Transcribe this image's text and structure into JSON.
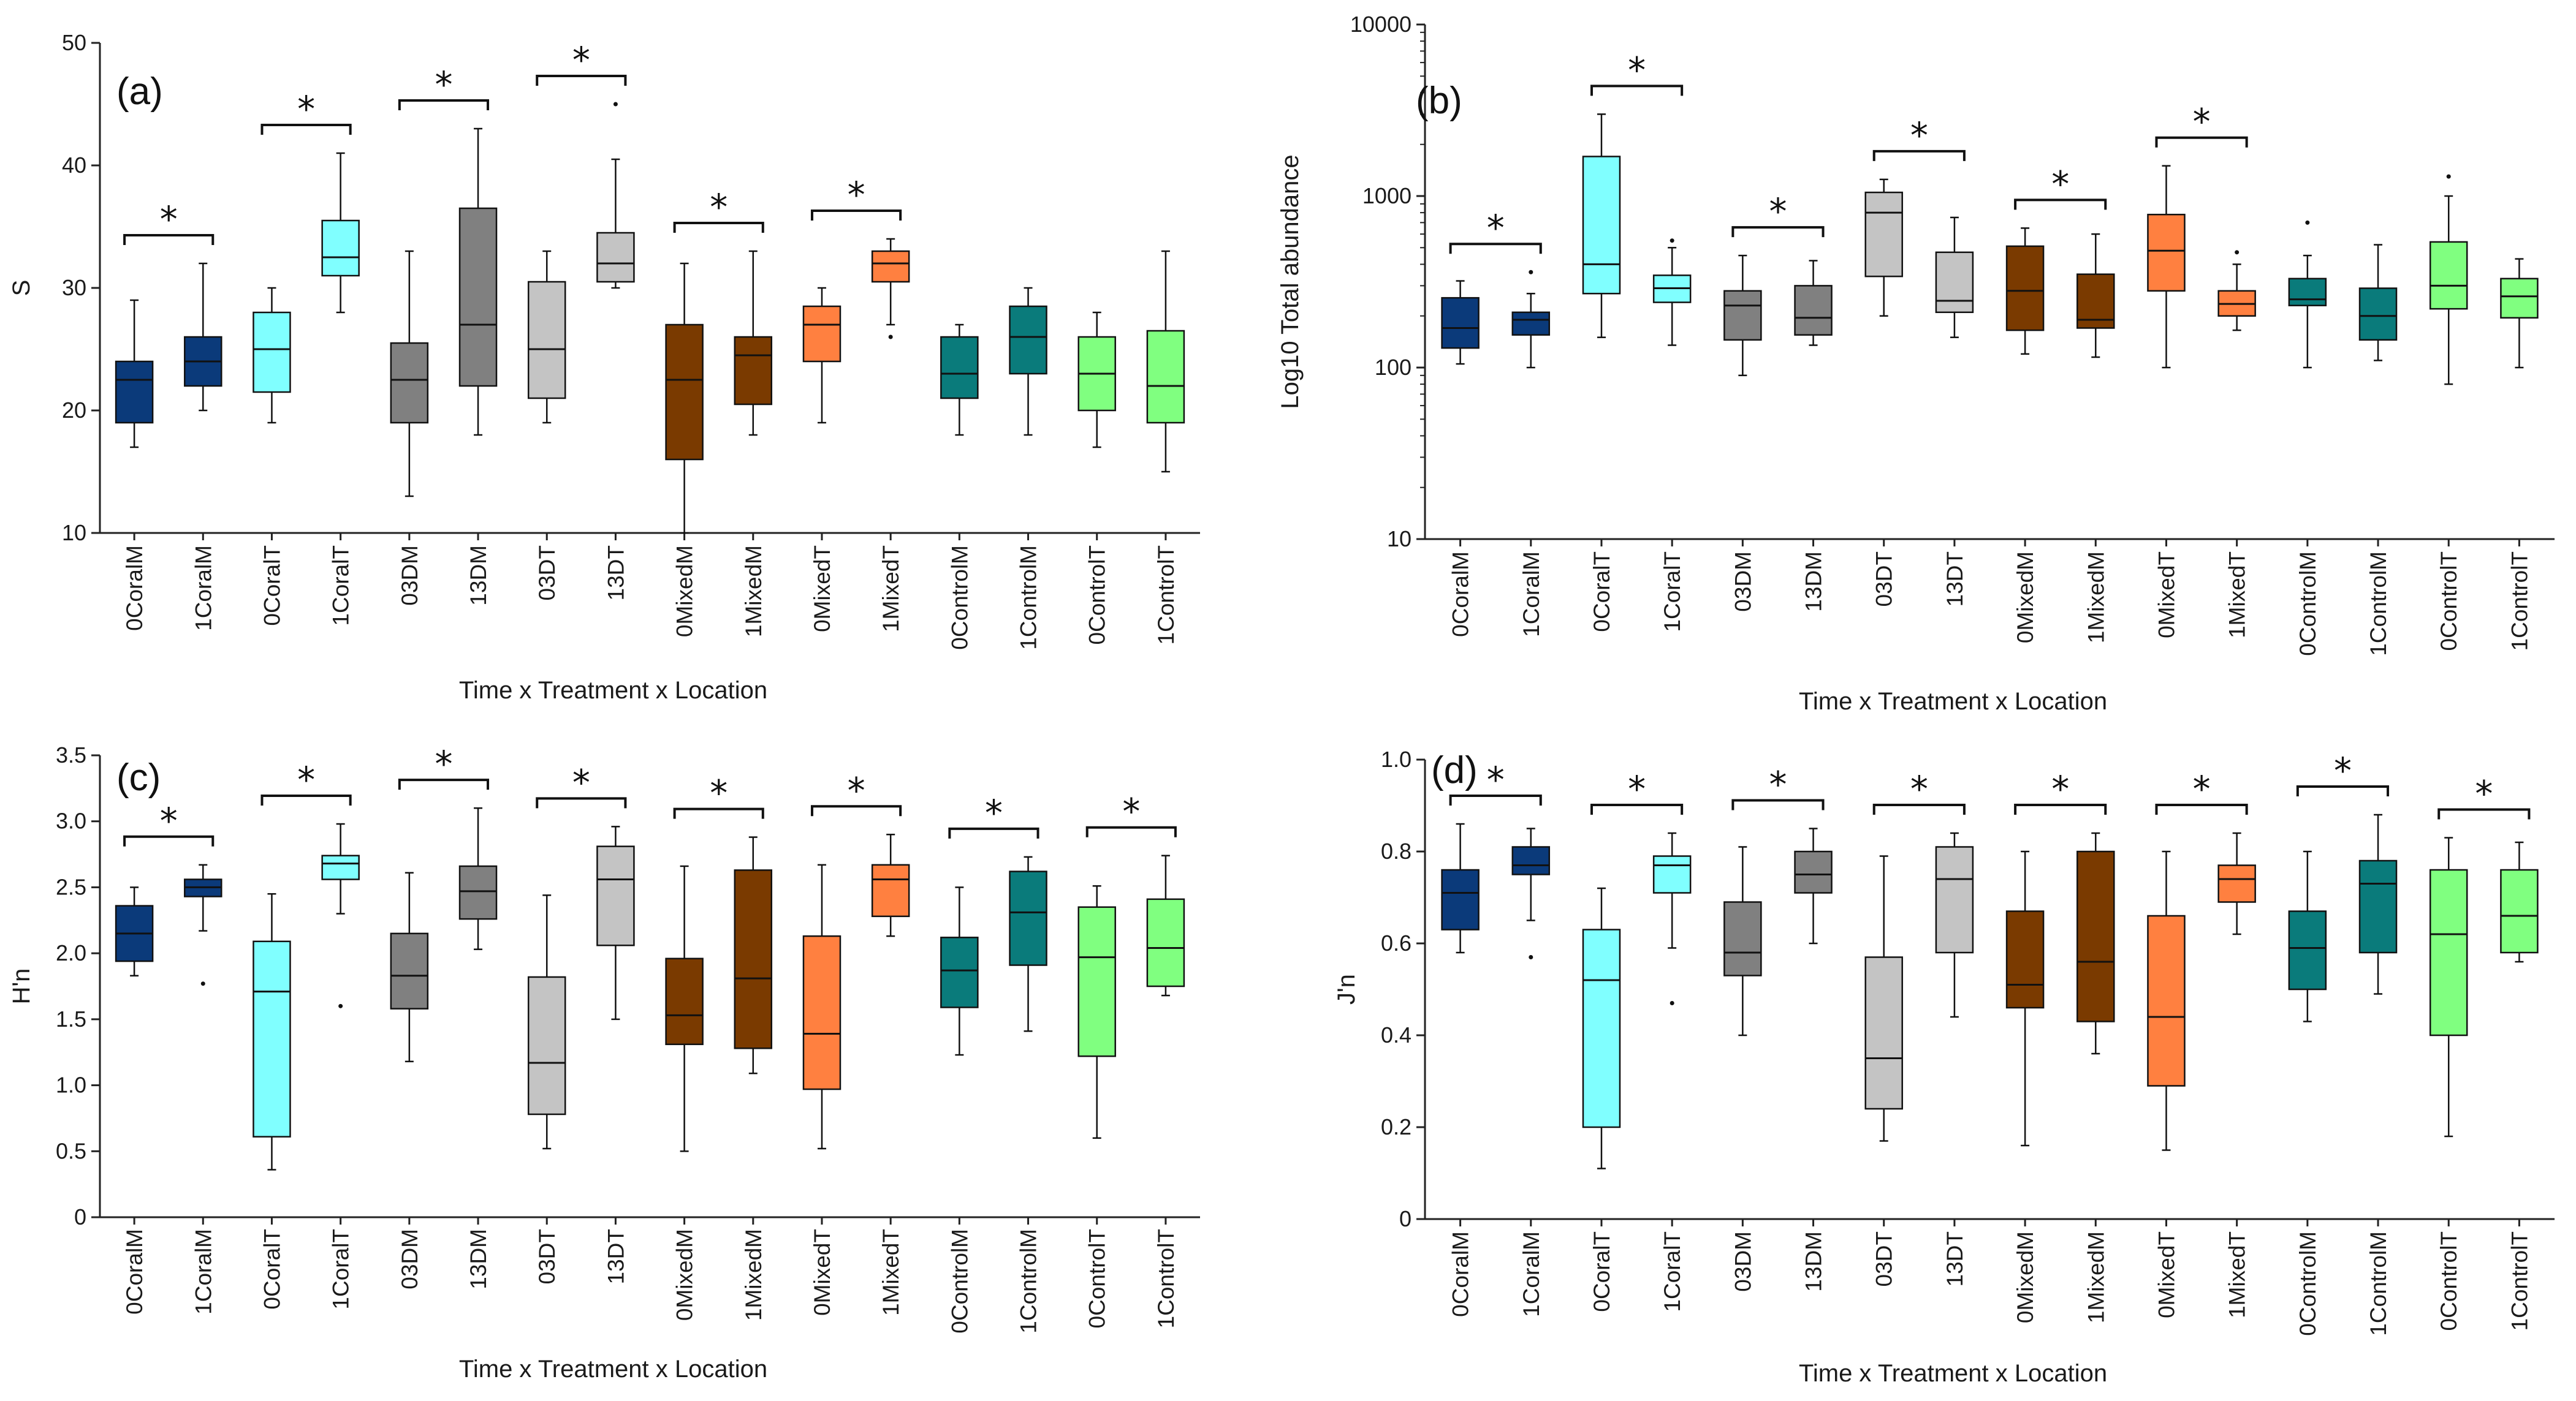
{
  "groups": [
    "0CoralM",
    "1CoralM",
    "0CoralT",
    "1CoralT",
    "03DM",
    "13DM",
    "03DT",
    "13DT",
    "0MixedM",
    "1MixedM",
    "0MixedT",
    "1MixedT",
    "0ControlM",
    "1ControlM",
    "0ControlT",
    "1ControlT"
  ],
  "colors": [
    "#0b3a7a",
    "#0b3a7a",
    "#80ffff",
    "#80ffff",
    "#808080",
    "#808080",
    "#c4c4c4",
    "#c4c4c4",
    "#7a3a00",
    "#7a3a00",
    "#ff8040",
    "#ff8040",
    "#0a7b7b",
    "#0a7b7b",
    "#80ff80",
    "#80ff80"
  ],
  "chart_data": [
    {
      "panel": "(a)",
      "type": "box",
      "ylabel": "S",
      "xlabel": "Time x Treatment x Location",
      "scale": "linear",
      "ylim": [
        10,
        50
      ],
      "yticks": [
        "10",
        "20",
        "30",
        "40",
        "50"
      ],
      "sig_pairs": [
        [
          0,
          1
        ],
        [
          2,
          3
        ],
        [
          4,
          5
        ],
        [
          6,
          7
        ],
        [
          8,
          9
        ],
        [
          10,
          11
        ]
      ],
      "boxes": [
        {
          "min": 17,
          "q1": 19,
          "median": 22.5,
          "q3": 24,
          "max": 29,
          "outliers": []
        },
        {
          "min": 20,
          "q1": 22,
          "median": 24,
          "q3": 26,
          "max": 32,
          "outliers": []
        },
        {
          "min": 19,
          "q1": 21.5,
          "median": 25,
          "q3": 28,
          "max": 30,
          "outliers": []
        },
        {
          "min": 28,
          "q1": 31,
          "median": 32.5,
          "q3": 35.5,
          "max": 41,
          "outliers": []
        },
        {
          "min": 13,
          "q1": 19,
          "median": 22.5,
          "q3": 25.5,
          "max": 33,
          "outliers": []
        },
        {
          "min": 18,
          "q1": 22,
          "median": 27,
          "q3": 36.5,
          "max": 43,
          "outliers": []
        },
        {
          "min": 19,
          "q1": 21,
          "median": 25,
          "q3": 30.5,
          "max": 33,
          "outliers": []
        },
        {
          "min": 30,
          "q1": 30.5,
          "median": 32,
          "q3": 34.5,
          "max": 40.5,
          "outliers": [
            45
          ]
        },
        {
          "min": 10,
          "q1": 16,
          "median": 22.5,
          "q3": 27,
          "max": 32,
          "outliers": []
        },
        {
          "min": 18,
          "q1": 20.5,
          "median": 24.5,
          "q3": 26,
          "max": 33,
          "outliers": []
        },
        {
          "min": 19,
          "q1": 24,
          "median": 27,
          "q3": 28.5,
          "max": 30,
          "outliers": []
        },
        {
          "min": 27,
          "q1": 30.5,
          "median": 32,
          "q3": 33,
          "max": 34,
          "outliers": [
            26
          ]
        },
        {
          "min": 18,
          "q1": 21,
          "median": 23,
          "q3": 26,
          "max": 27,
          "outliers": []
        },
        {
          "min": 18,
          "q1": 23,
          "median": 26,
          "q3": 28.5,
          "max": 30,
          "outliers": []
        },
        {
          "min": 17,
          "q1": 20,
          "median": 23,
          "q3": 26,
          "max": 28,
          "outliers": []
        },
        {
          "min": 15,
          "q1": 19,
          "median": 22,
          "q3": 26.5,
          "max": 33,
          "outliers": []
        }
      ]
    },
    {
      "panel": "(b)",
      "type": "box",
      "ylabel": "Log10 Total abundance",
      "xlabel": "Time x Treatment x Location",
      "scale": "log",
      "ylim": [
        10,
        10000
      ],
      "yticks": [
        "10",
        "100",
        "1000",
        "10000"
      ],
      "sig_pairs": [
        [
          0,
          1
        ],
        [
          2,
          3
        ],
        [
          4,
          5
        ],
        [
          6,
          7
        ],
        [
          8,
          9
        ],
        [
          10,
          11
        ]
      ],
      "boxes": [
        {
          "min": 105,
          "q1": 130,
          "median": 170,
          "q3": 255,
          "max": 320,
          "outliers": []
        },
        {
          "min": 100,
          "q1": 155,
          "median": 190,
          "q3": 210,
          "max": 270,
          "outliers": [
            360
          ]
        },
        {
          "min": 150,
          "q1": 270,
          "median": 400,
          "q3": 1700,
          "max": 3000,
          "outliers": []
        },
        {
          "min": 135,
          "q1": 240,
          "median": 290,
          "q3": 345,
          "max": 500,
          "outliers": [
            550
          ]
        },
        {
          "min": 90,
          "q1": 145,
          "median": 230,
          "q3": 280,
          "max": 450,
          "outliers": []
        },
        {
          "min": 135,
          "q1": 155,
          "median": 195,
          "q3": 300,
          "max": 420,
          "outliers": []
        },
        {
          "min": 200,
          "q1": 340,
          "median": 800,
          "q3": 1050,
          "max": 1250,
          "outliers": []
        },
        {
          "min": 150,
          "q1": 210,
          "median": 245,
          "q3": 470,
          "max": 750,
          "outliers": []
        },
        {
          "min": 120,
          "q1": 165,
          "median": 280,
          "q3": 510,
          "max": 650,
          "outliers": []
        },
        {
          "min": 115,
          "q1": 170,
          "median": 190,
          "q3": 350,
          "max": 600,
          "outliers": []
        },
        {
          "min": 100,
          "q1": 280,
          "median": 480,
          "q3": 780,
          "max": 1500,
          "outliers": []
        },
        {
          "min": 165,
          "q1": 200,
          "median": 235,
          "q3": 280,
          "max": 400,
          "outliers": [
            470
          ]
        },
        {
          "min": 100,
          "q1": 230,
          "median": 250,
          "q3": 330,
          "max": 450,
          "outliers": [
            700
          ]
        },
        {
          "min": 110,
          "q1": 145,
          "median": 200,
          "q3": 290,
          "max": 520,
          "outliers": []
        },
        {
          "min": 80,
          "q1": 220,
          "median": 300,
          "q3": 540,
          "max": 1000,
          "outliers": [
            1300
          ]
        },
        {
          "min": 100,
          "q1": 195,
          "median": 260,
          "q3": 330,
          "max": 430,
          "outliers": []
        }
      ]
    },
    {
      "panel": "(c)",
      "type": "box",
      "ylabel": "H'n",
      "xlabel": "Time x Treatment x Location",
      "scale": "linear",
      "ylim": [
        0,
        3.5
      ],
      "yticks": [
        "0",
        "0.5",
        "1.0",
        "1.5",
        "2.0",
        "2.5",
        "3.0",
        "3.5"
      ],
      "sig_pairs": [
        [
          0,
          1
        ],
        [
          2,
          3
        ],
        [
          4,
          5
        ],
        [
          6,
          7
        ],
        [
          8,
          9
        ],
        [
          10,
          11
        ],
        [
          12,
          13
        ],
        [
          14,
          15
        ]
      ],
      "boxes": [
        {
          "min": 1.83,
          "q1": 1.94,
          "median": 2.15,
          "q3": 2.36,
          "max": 2.5,
          "outliers": []
        },
        {
          "min": 2.17,
          "q1": 2.43,
          "median": 2.5,
          "q3": 2.56,
          "max": 2.67,
          "outliers": [
            1.77
          ]
        },
        {
          "min": 0.36,
          "q1": 0.61,
          "median": 1.71,
          "q3": 2.09,
          "max": 2.45,
          "outliers": []
        },
        {
          "min": 2.3,
          "q1": 2.56,
          "median": 2.68,
          "q3": 2.74,
          "max": 2.98,
          "outliers": [
            1.6
          ]
        },
        {
          "min": 1.18,
          "q1": 1.58,
          "median": 1.83,
          "q3": 2.15,
          "max": 2.61,
          "outliers": []
        },
        {
          "min": 2.03,
          "q1": 2.26,
          "median": 2.47,
          "q3": 2.66,
          "max": 3.1,
          "outliers": []
        },
        {
          "min": 0.52,
          "q1": 0.78,
          "median": 1.17,
          "q3": 1.82,
          "max": 2.44,
          "outliers": []
        },
        {
          "min": 1.5,
          "q1": 2.06,
          "median": 2.56,
          "q3": 2.81,
          "max": 2.96,
          "outliers": []
        },
        {
          "min": 0.5,
          "q1": 1.31,
          "median": 1.53,
          "q3": 1.96,
          "max": 2.66,
          "outliers": []
        },
        {
          "min": 1.09,
          "q1": 1.28,
          "median": 1.81,
          "q3": 2.63,
          "max": 2.88,
          "outliers": []
        },
        {
          "min": 0.52,
          "q1": 0.97,
          "median": 1.39,
          "q3": 2.13,
          "max": 2.67,
          "outliers": []
        },
        {
          "min": 2.13,
          "q1": 2.28,
          "median": 2.56,
          "q3": 2.67,
          "max": 2.9,
          "outliers": []
        },
        {
          "min": 1.23,
          "q1": 1.59,
          "median": 1.87,
          "q3": 2.12,
          "max": 2.5,
          "outliers": []
        },
        {
          "min": 1.41,
          "q1": 1.91,
          "median": 2.31,
          "q3": 2.62,
          "max": 2.73,
          "outliers": []
        },
        {
          "min": 0.6,
          "q1": 1.22,
          "median": 1.97,
          "q3": 2.35,
          "max": 2.51,
          "outliers": []
        },
        {
          "min": 1.68,
          "q1": 1.75,
          "median": 2.04,
          "q3": 2.41,
          "max": 2.74,
          "outliers": []
        }
      ]
    },
    {
      "panel": "(d)",
      "type": "box",
      "ylabel": "J'n",
      "xlabel": "Time x Treatment x Location",
      "scale": "linear",
      "ylim": [
        0,
        1.0
      ],
      "yticks": [
        "0",
        "0.2",
        "0.4",
        "0.6",
        "0.8",
        "1.0"
      ],
      "sig_pairs": [
        [
          0,
          1
        ],
        [
          2,
          3
        ],
        [
          4,
          5
        ],
        [
          6,
          7
        ],
        [
          8,
          9
        ],
        [
          10,
          11
        ],
        [
          12,
          13
        ],
        [
          14,
          15
        ]
      ],
      "boxes": [
        {
          "min": 0.58,
          "q1": 0.63,
          "median": 0.71,
          "q3": 0.76,
          "max": 0.86,
          "outliers": []
        },
        {
          "min": 0.65,
          "q1": 0.75,
          "median": 0.77,
          "q3": 0.81,
          "max": 0.85,
          "outliers": [
            0.57
          ]
        },
        {
          "min": 0.11,
          "q1": 0.2,
          "median": 0.52,
          "q3": 0.63,
          "max": 0.72,
          "outliers": []
        },
        {
          "min": 0.59,
          "q1": 0.71,
          "median": 0.77,
          "q3": 0.79,
          "max": 0.84,
          "outliers": [
            0.47
          ]
        },
        {
          "min": 0.4,
          "q1": 0.53,
          "median": 0.58,
          "q3": 0.69,
          "max": 0.81,
          "outliers": []
        },
        {
          "min": 0.6,
          "q1": 0.71,
          "median": 0.75,
          "q3": 0.8,
          "max": 0.85,
          "outliers": []
        },
        {
          "min": 0.17,
          "q1": 0.24,
          "median": 0.35,
          "q3": 0.57,
          "max": 0.79,
          "outliers": []
        },
        {
          "min": 0.44,
          "q1": 0.58,
          "median": 0.74,
          "q3": 0.81,
          "max": 0.84,
          "outliers": []
        },
        {
          "min": 0.16,
          "q1": 0.46,
          "median": 0.51,
          "q3": 0.67,
          "max": 0.8,
          "outliers": []
        },
        {
          "min": 0.36,
          "q1": 0.43,
          "median": 0.56,
          "q3": 0.8,
          "max": 0.84,
          "outliers": []
        },
        {
          "min": 0.15,
          "q1": 0.29,
          "median": 0.44,
          "q3": 0.66,
          "max": 0.8,
          "outliers": []
        },
        {
          "min": 0.62,
          "q1": 0.69,
          "median": 0.74,
          "q3": 0.77,
          "max": 0.84,
          "outliers": []
        },
        {
          "min": 0.43,
          "q1": 0.5,
          "median": 0.59,
          "q3": 0.67,
          "max": 0.8,
          "outliers": []
        },
        {
          "min": 0.49,
          "q1": 0.58,
          "median": 0.73,
          "q3": 0.78,
          "max": 0.88,
          "outliers": []
        },
        {
          "min": 0.18,
          "q1": 0.4,
          "median": 0.62,
          "q3": 0.76,
          "max": 0.83,
          "outliers": []
        },
        {
          "min": 0.56,
          "q1": 0.58,
          "median": 0.66,
          "q3": 0.76,
          "max": 0.82,
          "outliers": []
        }
      ]
    }
  ]
}
